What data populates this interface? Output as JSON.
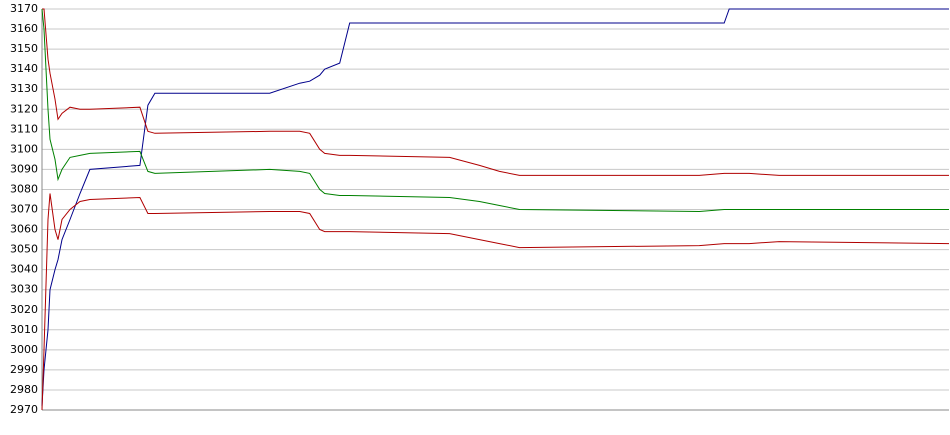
{
  "chart_data": {
    "type": "line",
    "x": [
      0,
      2,
      6,
      8,
      13,
      16,
      20,
      28,
      38,
      48,
      98,
      106,
      113,
      228,
      258,
      268,
      278,
      283,
      298,
      308,
      408,
      438,
      458,
      478,
      658,
      683,
      688,
      708,
      738,
      908
    ],
    "xlim": [
      0,
      908
    ],
    "ylim": [
      2970,
      3170
    ],
    "yticks": [
      2970,
      2980,
      2990,
      3000,
      3010,
      3020,
      3030,
      3040,
      3050,
      3060,
      3070,
      3080,
      3090,
      3100,
      3110,
      3120,
      3130,
      3140,
      3150,
      3160,
      3170
    ],
    "grid": true,
    "series": [
      {
        "color": "#00008b",
        "values": [
          2972,
          2990,
          3010,
          3030,
          3040,
          3045,
          3055,
          3065,
          3078,
          3090,
          3092,
          3122,
          3128,
          3128,
          3133,
          3134,
          3137,
          3140,
          3143,
          3163,
          3163,
          3163,
          3163,
          3163,
          3163,
          3163,
          3170,
          3170,
          3170,
          3170
        ]
      },
      {
        "color": "#b00000",
        "values": [
          3170,
          3170,
          3145,
          3138,
          3125,
          3115,
          3118,
          3121,
          3120,
          3120,
          3121,
          3109,
          3108,
          3109,
          3109,
          3108,
          3100,
          3098,
          3097,
          3097,
          3096,
          3092,
          3089,
          3087,
          3087,
          3088,
          3088,
          3088,
          3087,
          3087
        ]
      },
      {
        "color": "#008000",
        "values": [
          3170,
          3160,
          3120,
          3105,
          3095,
          3085,
          3090,
          3096,
          3097,
          3098,
          3099,
          3089,
          3088,
          3090,
          3089,
          3088,
          3080,
          3078,
          3077,
          3077,
          3076,
          3074,
          3072,
          3070,
          3069,
          3070,
          3070,
          3070,
          3070,
          3070
        ]
      },
      {
        "color": "#b00000",
        "values": [
          2970,
          3000,
          3065,
          3078,
          3060,
          3055,
          3065,
          3070,
          3074,
          3075,
          3076,
          3068,
          3068,
          3069,
          3069,
          3068,
          3060,
          3059,
          3059,
          3059,
          3058,
          3055,
          3053,
          3051,
          3052,
          3053,
          3053,
          3053,
          3054,
          3053
        ]
      }
    ]
  }
}
